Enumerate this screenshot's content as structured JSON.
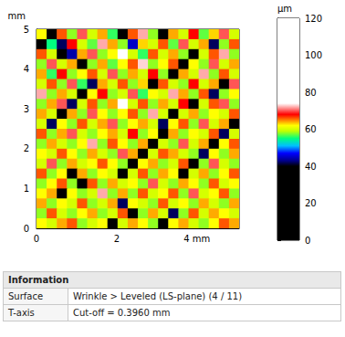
{
  "chart_data": {
    "type": "heatmap",
    "xlim": [
      0,
      5.05
    ],
    "xticks": [
      0,
      2,
      {
        "value": 4,
        "label": "4 mm"
      }
    ],
    "ylim": [
      0,
      5
    ],
    "yticks": [
      0,
      1,
      2,
      3,
      4,
      5
    ],
    "ylabel": "mm",
    "z": [
      [
        62,
        38,
        66,
        58,
        70,
        60,
        64,
        56,
        36,
        66,
        72,
        58,
        40,
        64,
        60,
        68,
        57,
        63,
        70,
        60
      ],
      [
        40,
        55,
        42,
        68,
        60,
        57,
        72,
        64,
        58,
        45,
        63,
        60,
        66,
        57,
        70,
        60,
        64,
        42,
        58,
        66
      ],
      [
        66,
        60,
        38,
        44,
        64,
        70,
        58,
        62,
        76,
        60,
        56,
        66,
        60,
        64,
        58,
        40,
        60,
        66,
        72,
        58
      ],
      [
        58,
        70,
        60,
        64,
        40,
        58,
        64,
        57,
        62,
        66,
        73,
        58,
        62,
        66,
        40,
        62,
        58,
        70,
        60,
        64
      ],
      [
        64,
        56,
        68,
        58,
        62,
        66,
        60,
        70,
        58,
        64,
        60,
        68,
        58,
        38,
        64,
        60,
        72,
        58,
        66,
        60
      ],
      [
        60,
        66,
        58,
        70,
        56,
        42,
        64,
        60,
        66,
        58,
        63,
        40,
        66,
        60,
        58,
        68,
        60,
        64,
        40,
        70
      ],
      [
        72,
        58,
        64,
        60,
        40,
        62,
        68,
        58,
        60,
        70,
        56,
        62,
        60,
        72,
        64,
        58,
        66,
        42,
        58,
        62
      ],
      [
        58,
        64,
        70,
        42,
        60,
        66,
        58,
        64,
        78,
        60,
        66,
        58,
        64,
        60,
        68,
        40,
        60,
        66,
        70,
        58
      ],
      [
        64,
        60,
        40,
        64,
        58,
        70,
        62,
        58,
        62,
        66,
        58,
        72,
        60,
        40,
        60,
        64,
        58,
        62,
        60,
        66
      ],
      [
        60,
        42,
        62,
        58,
        66,
        60,
        64,
        70,
        58,
        62,
        64,
        60,
        42,
        62,
        66,
        58,
        70,
        60,
        64,
        40
      ],
      [
        66,
        58,
        64,
        70,
        60,
        58,
        62,
        64,
        60,
        68,
        58,
        62,
        38,
        64,
        58,
        62,
        60,
        66,
        42,
        60
      ],
      [
        58,
        64,
        60,
        58,
        62,
        72,
        58,
        66,
        62,
        58,
        64,
        38,
        60,
        58,
        70,
        60,
        64,
        40,
        62,
        66
      ],
      [
        62,
        60,
        66,
        62,
        58,
        64,
        60,
        58,
        70,
        64,
        38,
        60,
        66,
        64,
        60,
        58,
        42,
        62,
        58,
        64
      ],
      [
        60,
        70,
        58,
        64,
        60,
        62,
        66,
        62,
        58,
        36,
        62,
        64,
        58,
        60,
        66,
        40,
        58,
        70,
        60,
        58
      ],
      [
        66,
        58,
        62,
        40,
        64,
        58,
        62,
        60,
        38,
        60,
        66,
        58,
        64,
        62,
        40,
        60,
        64,
        58,
        62,
        66
      ],
      [
        58,
        62,
        66,
        58,
        40,
        66,
        58,
        64,
        60,
        62,
        58,
        70,
        60,
        58,
        64,
        62,
        58,
        66,
        60,
        62
      ],
      [
        62,
        64,
        40,
        62,
        58,
        60,
        72,
        58,
        64,
        58,
        66,
        60,
        62,
        66,
        58,
        70,
        60,
        62,
        66,
        58
      ],
      [
        64,
        58,
        62,
        60,
        66,
        58,
        60,
        64,
        42,
        62,
        60,
        58,
        66,
        60,
        62,
        58,
        64,
        60,
        58,
        64
      ],
      [
        58,
        66,
        60,
        58,
        62,
        64,
        58,
        60,
        66,
        40,
        58,
        64,
        60,
        42,
        58,
        66,
        60,
        64,
        62,
        60
      ],
      [
        62,
        60,
        64,
        66,
        58,
        60,
        62,
        38,
        60,
        64,
        62,
        58,
        40,
        62,
        64,
        60,
        58,
        62,
        66,
        64
      ]
    ],
    "colorbar": {
      "range": [
        0,
        120
      ],
      "ticks": [
        0,
        20,
        40,
        60,
        80,
        100,
        120
      ],
      "label": "µm",
      "stops": [
        [
          0,
          "#000000"
        ],
        [
          40,
          "#000000"
        ],
        [
          43,
          "#00008b"
        ],
        [
          47,
          "#0000ff"
        ],
        [
          51,
          "#00bfff"
        ],
        [
          55,
          "#00ff80"
        ],
        [
          59,
          "#c0ff00"
        ],
        [
          62,
          "#ffff00"
        ],
        [
          65,
          "#ff8000"
        ],
        [
          68,
          "#ff0000"
        ],
        [
          71,
          "#ff8080"
        ],
        [
          74,
          "#ffffff"
        ],
        [
          120,
          "#ffffff"
        ]
      ]
    }
  },
  "info": {
    "header": "Information",
    "rows": [
      [
        "Surface",
        "Wrinkle > Leveled (LS-plane) (4 / 11)"
      ],
      [
        "T-axis",
        "Cut-off = 0.3960 mm"
      ]
    ]
  }
}
